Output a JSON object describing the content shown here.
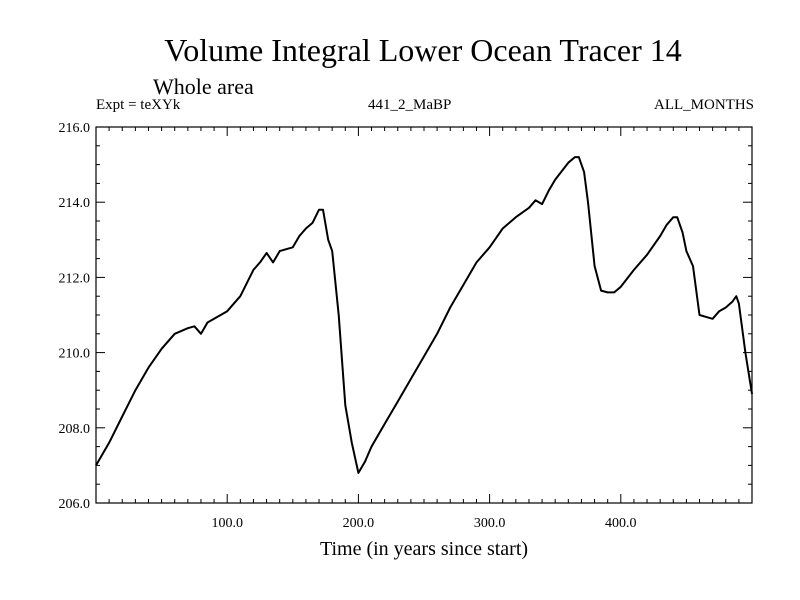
{
  "chart_data": {
    "type": "line",
    "title": "Volume Integral Lower Ocean Tracer 14",
    "subtitle": "Whole area",
    "header_left": "Expt = teXYk",
    "header_center": "441_2_MaBP",
    "header_right": "ALL_MONTHS",
    "xlabel": "Time (in years since start)",
    "ylabel": "",
    "xlim": [
      0,
      500
    ],
    "ylim": [
      206.0,
      216.0
    ],
    "xticks": [
      100,
      200,
      300,
      400
    ],
    "xtick_labels": [
      "100.0",
      "200.0",
      "300.0",
      "400.0"
    ],
    "yticks": [
      206,
      208,
      210,
      212,
      214,
      216
    ],
    "ytick_labels": [
      "206.0",
      "208.0",
      "210.0",
      "212.0",
      "214.0",
      "216.0"
    ],
    "grid": false,
    "series": [
      {
        "x": [
          0,
          10,
          20,
          30,
          40,
          50,
          60,
          70,
          75,
          80,
          85,
          90,
          100,
          110,
          120,
          125,
          130,
          135,
          140,
          145,
          150,
          155,
          160,
          165,
          170,
          173,
          177,
          180,
          185,
          190,
          195,
          200,
          205,
          210,
          220,
          230,
          240,
          250,
          260,
          270,
          280,
          290,
          300,
          310,
          320,
          330,
          335,
          340,
          345,
          350,
          360,
          365,
          368,
          372,
          375,
          380,
          385,
          390,
          395,
          400,
          410,
          420,
          430,
          435,
          440,
          443,
          447,
          450,
          455,
          460,
          465,
          470,
          475,
          480,
          485,
          488,
          490,
          495,
          500
        ],
        "y": [
          207.0,
          207.6,
          208.3,
          209.0,
          209.6,
          210.1,
          210.5,
          210.65,
          210.7,
          210.5,
          210.8,
          210.9,
          211.1,
          211.5,
          212.2,
          212.4,
          212.65,
          212.4,
          212.7,
          212.75,
          212.8,
          213.1,
          213.3,
          213.45,
          213.8,
          213.8,
          213.0,
          212.7,
          211.0,
          208.6,
          207.6,
          206.8,
          207.1,
          207.5,
          208.1,
          208.7,
          209.3,
          209.9,
          210.5,
          211.2,
          211.8,
          212.4,
          212.8,
          213.3,
          213.6,
          213.85,
          214.05,
          213.95,
          214.3,
          214.6,
          215.05,
          215.2,
          215.2,
          214.8,
          214.0,
          212.3,
          211.65,
          211.6,
          211.6,
          211.75,
          212.2,
          212.6,
          213.1,
          213.4,
          213.6,
          213.6,
          213.2,
          212.7,
          212.3,
          211.0,
          210.95,
          210.9,
          211.1,
          211.2,
          211.35,
          211.5,
          211.3,
          210.0,
          208.9
        ]
      }
    ]
  }
}
